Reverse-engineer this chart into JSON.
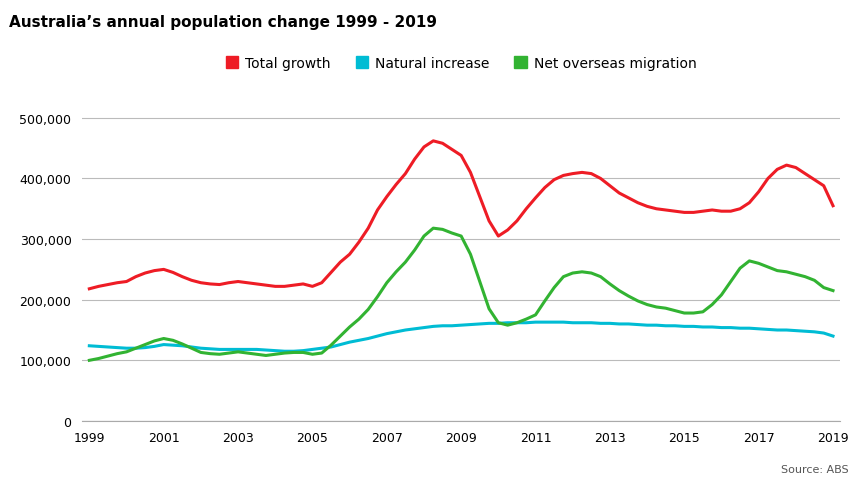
{
  "title": "Australia’s annual population change 1999 - 2019",
  "source": "Source: ABS",
  "legend": [
    "Total growth",
    "Natural increase",
    "Net overseas migration"
  ],
  "colors": {
    "total_growth": "#ee1c25",
    "natural_increase": "#00bcd4",
    "net_migration": "#32b332"
  },
  "years": [
    1999,
    1999.25,
    1999.5,
    1999.75,
    2000,
    2000.25,
    2000.5,
    2000.75,
    2001,
    2001.25,
    2001.5,
    2001.75,
    2002,
    2002.25,
    2002.5,
    2002.75,
    2003,
    2003.25,
    2003.5,
    2003.75,
    2004,
    2004.25,
    2004.5,
    2004.75,
    2005,
    2005.25,
    2005.5,
    2005.75,
    2006,
    2006.25,
    2006.5,
    2006.75,
    2007,
    2007.25,
    2007.5,
    2007.75,
    2008,
    2008.25,
    2008.5,
    2008.75,
    2009,
    2009.25,
    2009.5,
    2009.75,
    2010,
    2010.25,
    2010.5,
    2010.75,
    2011,
    2011.25,
    2011.5,
    2011.75,
    2012,
    2012.25,
    2012.5,
    2012.75,
    2013,
    2013.25,
    2013.5,
    2013.75,
    2014,
    2014.25,
    2014.5,
    2014.75,
    2015,
    2015.25,
    2015.5,
    2015.75,
    2016,
    2016.25,
    2016.5,
    2016.75,
    2017,
    2017.25,
    2017.5,
    2017.75,
    2018,
    2018.25,
    2018.5,
    2018.75,
    2019
  ],
  "total_growth": [
    218000,
    222000,
    225000,
    228000,
    230000,
    238000,
    244000,
    248000,
    250000,
    245000,
    238000,
    232000,
    228000,
    226000,
    225000,
    228000,
    230000,
    228000,
    226000,
    224000,
    222000,
    222000,
    224000,
    226000,
    222000,
    228000,
    245000,
    262000,
    275000,
    295000,
    318000,
    348000,
    370000,
    390000,
    408000,
    432000,
    452000,
    462000,
    458000,
    448000,
    438000,
    410000,
    370000,
    330000,
    305000,
    315000,
    330000,
    350000,
    368000,
    385000,
    398000,
    405000,
    408000,
    410000,
    408000,
    400000,
    388000,
    376000,
    368000,
    360000,
    354000,
    350000,
    348000,
    346000,
    344000,
    344000,
    346000,
    348000,
    346000,
    346000,
    350000,
    360000,
    378000,
    400000,
    415000,
    422000,
    418000,
    408000,
    398000,
    388000,
    355000
  ],
  "natural_increase": [
    124000,
    123000,
    122000,
    121000,
    120000,
    120000,
    121000,
    123000,
    126000,
    125000,
    124000,
    122000,
    120000,
    119000,
    118000,
    118000,
    118000,
    118000,
    118000,
    117000,
    116000,
    115000,
    115000,
    116000,
    118000,
    120000,
    122000,
    126000,
    130000,
    133000,
    136000,
    140000,
    144000,
    147000,
    150000,
    152000,
    154000,
    156000,
    157000,
    157000,
    158000,
    159000,
    160000,
    161000,
    161000,
    162000,
    162000,
    162000,
    163000,
    163000,
    163000,
    163000,
    162000,
    162000,
    162000,
    161000,
    161000,
    160000,
    160000,
    159000,
    158000,
    158000,
    157000,
    157000,
    156000,
    156000,
    155000,
    155000,
    154000,
    154000,
    153000,
    153000,
    152000,
    151000,
    150000,
    150000,
    149000,
    148000,
    147000,
    145000,
    140000
  ],
  "net_migration": [
    100000,
    103000,
    107000,
    111000,
    114000,
    120000,
    126000,
    132000,
    136000,
    133000,
    127000,
    120000,
    113000,
    111000,
    110000,
    112000,
    114000,
    112000,
    110000,
    108000,
    110000,
    112000,
    113000,
    113000,
    110000,
    112000,
    125000,
    140000,
    155000,
    168000,
    184000,
    205000,
    228000,
    246000,
    262000,
    282000,
    305000,
    318000,
    316000,
    310000,
    305000,
    275000,
    230000,
    185000,
    162000,
    158000,
    162000,
    168000,
    175000,
    198000,
    220000,
    238000,
    244000,
    246000,
    244000,
    238000,
    226000,
    215000,
    206000,
    198000,
    192000,
    188000,
    186000,
    182000,
    178000,
    178000,
    180000,
    192000,
    208000,
    230000,
    252000,
    264000,
    260000,
    254000,
    248000,
    246000,
    242000,
    238000,
    232000,
    220000,
    215000
  ],
  "ylim": [
    0,
    520000
  ],
  "yticks": [
    0,
    100000,
    200000,
    300000,
    400000,
    500000
  ],
  "xticks": [
    1999,
    2001,
    2003,
    2005,
    2007,
    2009,
    2011,
    2013,
    2015,
    2017,
    2019
  ],
  "xlim": [
    1999,
    2019
  ],
  "bg_color": "#ffffff",
  "grid_color": "#bbbbbb",
  "linewidth": 2.2
}
